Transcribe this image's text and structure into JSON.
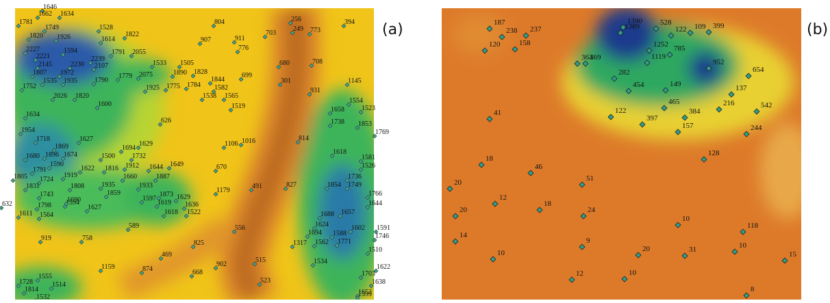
{
  "panels": [
    {
      "label": "(a)",
      "points": [
        1646,
        1662,
        1634,
        1781,
        1749,
        1528,
        804,
        256,
        249,
        773,
        394,
        1820,
        1926,
        1614,
        1822,
        907,
        911,
        703,
        776,
        2227,
        1594,
        1791,
        2055,
        2221,
        2239,
        2145,
        2230,
        2107,
        1533,
        1505,
        680,
        708,
        1807,
        1972,
        1779,
        2075,
        1890,
        1828,
        1844,
        699,
        1752,
        1535,
        1935,
        1790,
        1925,
        1775,
        1784,
        1582,
        301,
        1145,
        2026,
        1820,
        1538,
        1565,
        931,
        1600,
        1519,
        1554,
        1634,
        626,
        1658,
        1523,
        1954,
        1738,
        1853,
        1627,
        1718,
        1869,
        1694,
        1629,
        1016,
        1106,
        814,
        1769,
        1680,
        1896,
        1674,
        1500,
        1732,
        1618,
        1581,
        1590,
        1622,
        1816,
        1912,
        1649,
        1644,
        670,
        1526,
        1791,
        1805,
        1724,
        1919,
        1660,
        1887,
        1736,
        1831,
        1808,
        1935,
        1933,
        1179,
        491,
        827,
        1854,
        1749,
        1766,
        1743,
        1859,
        1873,
        1629,
        1597,
        1594,
        1690,
        1619,
        1636,
        1644,
        1798,
        1627,
        1618,
        1522,
        1688,
        1657,
        632,
        1611,
        1564,
        589,
        556,
        1624,
        1602,
        1591,
        1694,
        1588,
        1746,
        919,
        758,
        825,
        1317,
        1562,
        1771,
        1510,
        469,
        515,
        1534,
        1622,
        1159,
        874,
        902,
        668,
        1555,
        523,
        1703,
        1728,
        1514,
        1638,
        1814,
        1532,
        1652,
        1599
      ]
    },
    {
      "label": "(b)",
      "points": [
        187,
        238,
        237,
        120,
        158,
        1390,
        528,
        122,
        109,
        399,
        1389,
        1252,
        785,
        1119,
        363,
        469,
        952,
        654,
        282,
        454,
        149,
        137,
        465,
        384,
        216,
        542,
        122,
        397,
        157,
        244,
        41,
        128,
        18,
        46,
        51,
        20,
        12,
        18,
        24,
        20,
        10,
        118,
        14,
        9,
        20,
        31,
        10,
        15,
        10,
        12,
        10,
        8
      ]
    }
  ]
}
